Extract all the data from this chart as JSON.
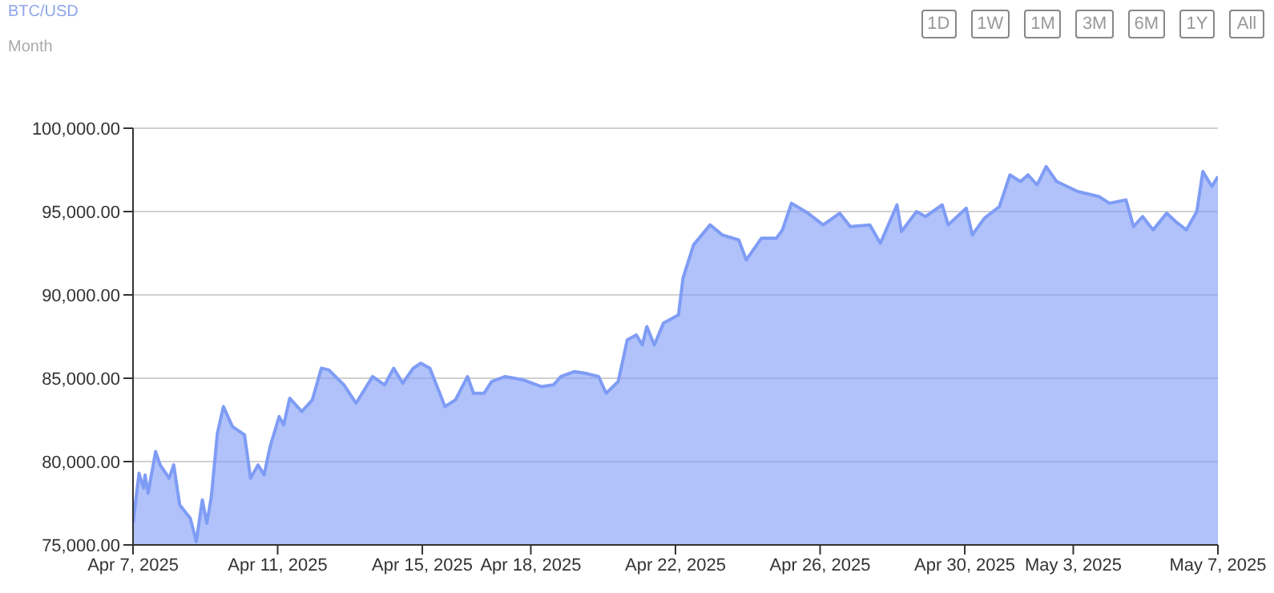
{
  "chart_data": {
    "type": "area",
    "title": "BTC/USD",
    "subtitle": "Month",
    "annotations": [
      "1D",
      "1W",
      "1M",
      "3M",
      "6M",
      "1Y",
      "All"
    ],
    "x": [
      "2025-04-07T00:00",
      "2025-04-07T04:00",
      "2025-04-07T07:00",
      "2025-04-07T08:00",
      "2025-04-07T10:00",
      "2025-04-07T15:00",
      "2025-04-07T18:00",
      "2025-04-08T00:00",
      "2025-04-08T03:00",
      "2025-04-08T07:00",
      "2025-04-08T14:00",
      "2025-04-08T18:00",
      "2025-04-08T22:00",
      "2025-04-09T01:00",
      "2025-04-09T04:00",
      "2025-04-09T08:00",
      "2025-04-09T12:00",
      "2025-04-09T18:00",
      "2025-04-10T02:00",
      "2025-04-10T06:00",
      "2025-04-10T11:00",
      "2025-04-10T15:00",
      "2025-04-10T19:00",
      "2025-04-11T01:00",
      "2025-04-11T04:00",
      "2025-04-11T08:00",
      "2025-04-11T16:00",
      "2025-04-11T23:00",
      "2025-04-12T05:00",
      "2025-04-12T10:00",
      "2025-04-12T20:00",
      "2025-04-13T04:00",
      "2025-04-13T15:00",
      "2025-04-13T23:00",
      "2025-04-14T05:00",
      "2025-04-14T11:00",
      "2025-04-14T18:00",
      "2025-04-14T23:00",
      "2025-04-15T05:00",
      "2025-04-15T12:00",
      "2025-04-15T15:00",
      "2025-04-15T22:00",
      "2025-04-16T06:00",
      "2025-04-16T10:00",
      "2025-04-16T17:00",
      "2025-04-16T22:00",
      "2025-04-17T07:00",
      "2025-04-17T19:00",
      "2025-04-18T07:00",
      "2025-04-18T15:00",
      "2025-04-18T20:00",
      "2025-04-19T05:00",
      "2025-04-19T12:00",
      "2025-04-19T21:00",
      "2025-04-20T02:00",
      "2025-04-20T10:00",
      "2025-04-20T16:00",
      "2025-04-20T22:00",
      "2025-04-21T02:00",
      "2025-04-21T05:00",
      "2025-04-21T10:00",
      "2025-04-21T16:00",
      "2025-04-22T02:00",
      "2025-04-22T05:00",
      "2025-04-22T12:00",
      "2025-04-22T23:00",
      "2025-04-23T07:00",
      "2025-04-23T18:00",
      "2025-04-23T23:00",
      "2025-04-24T09:00",
      "2025-04-24T19:00",
      "2025-04-24T23:00",
      "2025-04-25T05:00",
      "2025-04-25T16:00",
      "2025-04-26T02:00",
      "2025-04-26T13:00",
      "2025-04-26T20:00",
      "2025-04-27T09:00",
      "2025-04-27T16:00",
      "2025-04-28T03:00",
      "2025-04-28T06:00",
      "2025-04-28T16:00",
      "2025-04-28T22:00",
      "2025-04-29T09:00",
      "2025-04-29T13:00",
      "2025-04-30T01:00",
      "2025-04-30T05:00",
      "2025-04-30T13:00",
      "2025-04-30T23:00",
      "2025-05-01T06:00",
      "2025-05-01T13:00",
      "2025-05-01T18:00",
      "2025-05-02T00:00",
      "2025-05-02T06:00",
      "2025-05-02T13:00",
      "2025-05-03T03:00",
      "2025-05-03T17:00",
      "2025-05-04T00:00",
      "2025-05-04T11:00",
      "2025-05-04T16:00",
      "2025-05-04T22:00",
      "2025-05-05T05:00",
      "2025-05-05T14:00",
      "2025-05-05T20:00",
      "2025-05-06T03:00",
      "2025-05-06T10:00",
      "2025-05-06T14:00",
      "2025-05-06T20:00",
      "2025-05-07T00:00"
    ],
    "series": [
      {
        "color": "#7f9cf5",
        "values": [
          76300,
          79300,
          78400,
          79200,
          78100,
          80600,
          79800,
          79000,
          79800,
          77400,
          76600,
          75200,
          77700,
          76300,
          77900,
          81700,
          83300,
          82100,
          81600,
          79000,
          79800,
          79200,
          80900,
          82700,
          82200,
          83800,
          83000,
          83700,
          85600,
          85500,
          84600,
          83500,
          85100,
          84600,
          85600,
          84700,
          85600,
          85900,
          85600,
          84000,
          83300,
          83700,
          85100,
          84100,
          84100,
          84800,
          85100,
          84900,
          84500,
          84600,
          85100,
          85400,
          85300,
          85100,
          84100,
          84800,
          87300,
          87600,
          87000,
          88100,
          87000,
          88300,
          88800,
          91000,
          93000,
          94200,
          93600,
          93300,
          92100,
          93400,
          93400,
          93900,
          95500,
          94900,
          94200,
          94900,
          94100,
          94200,
          93100,
          95400,
          93800,
          95000,
          94700,
          95400,
          94200,
          95200,
          93600,
          94600,
          95300,
          97200,
          96800,
          97200,
          96600,
          97700,
          96800,
          96200,
          95900,
          95500,
          95700,
          94100,
          94700,
          93900,
          94900,
          94400,
          93900,
          95000,
          97400,
          96500,
          97100
        ]
      }
    ],
    "xlim": [
      "2025-04-07T00:00",
      "2025-05-07T00:00"
    ],
    "xticks": [
      {
        "value": "2025-04-07T00:00",
        "label": "Apr 7, 2025"
      },
      {
        "value": "2025-04-11T00:00",
        "label": "Apr 11, 2025"
      },
      {
        "value": "2025-04-15T00:00",
        "label": "Apr 15, 2025"
      },
      {
        "value": "2025-04-18T00:00",
        "label": "Apr 18, 2025"
      },
      {
        "value": "2025-04-22T00:00",
        "label": "Apr 22, 2025"
      },
      {
        "value": "2025-04-26T00:00",
        "label": "Apr 26, 2025"
      },
      {
        "value": "2025-04-30T00:00",
        "label": "Apr 30, 2025"
      },
      {
        "value": "2025-05-03T00:00",
        "label": "May 3, 2025"
      },
      {
        "value": "2025-05-07T00:00",
        "label": "May 7, 2025"
      }
    ],
    "ylim": [
      75000,
      100000
    ],
    "yticks": [
      {
        "value": 75000,
        "label": "75,000.00"
      },
      {
        "value": 80000,
        "label": "80,000.00"
      },
      {
        "value": 85000,
        "label": "85,000.00"
      },
      {
        "value": 90000,
        "label": "90,000.00"
      },
      {
        "value": 95000,
        "label": "95,000.00"
      },
      {
        "value": 100000,
        "label": "100,000.00"
      }
    ],
    "grid": "y",
    "legend": false,
    "marker": "none",
    "line_style": "solid"
  }
}
